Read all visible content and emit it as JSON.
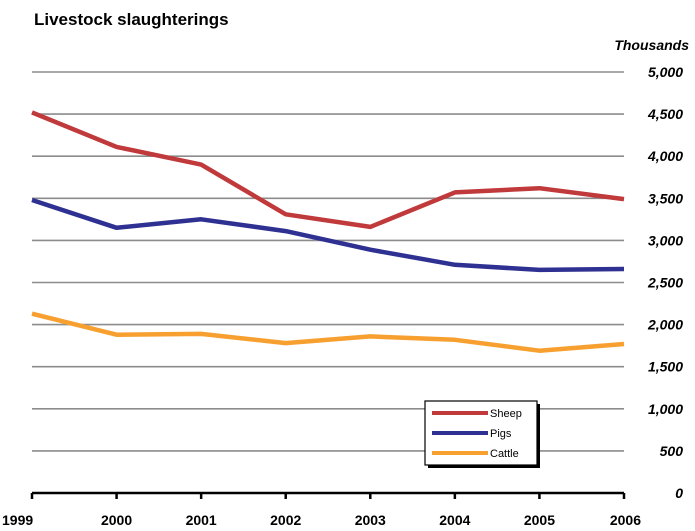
{
  "chart_data": {
    "type": "line",
    "title": "Livestock slaughterings",
    "unit_label": "Thousands",
    "x": [
      "1999",
      "2000",
      "2001",
      "2002",
      "2003",
      "2004",
      "2005",
      "2006"
    ],
    "y_ticks": [
      "0",
      "500",
      "1,000",
      "1,500",
      "2,000",
      "2,500",
      "3,000",
      "3,500",
      "4,000",
      "4,500",
      "5,000"
    ],
    "ylim": [
      0,
      5000
    ],
    "y_axis_side": "right",
    "grid": true,
    "legend_position": "bottom-right",
    "series": [
      {
        "name": "Sheep",
        "color": "#C0393B",
        "values": [
          4520,
          4110,
          3900,
          3310,
          3160,
          3570,
          3620,
          3490
        ]
      },
      {
        "name": "Pigs",
        "color": "#2E3192",
        "values": [
          3480,
          3150,
          3250,
          3110,
          2890,
          2710,
          2650,
          2660
        ]
      },
      {
        "name": "Cattle",
        "color": "#F7A030",
        "values": [
          2130,
          1880,
          1890,
          1780,
          1860,
          1820,
          1690,
          1770
        ]
      }
    ]
  }
}
